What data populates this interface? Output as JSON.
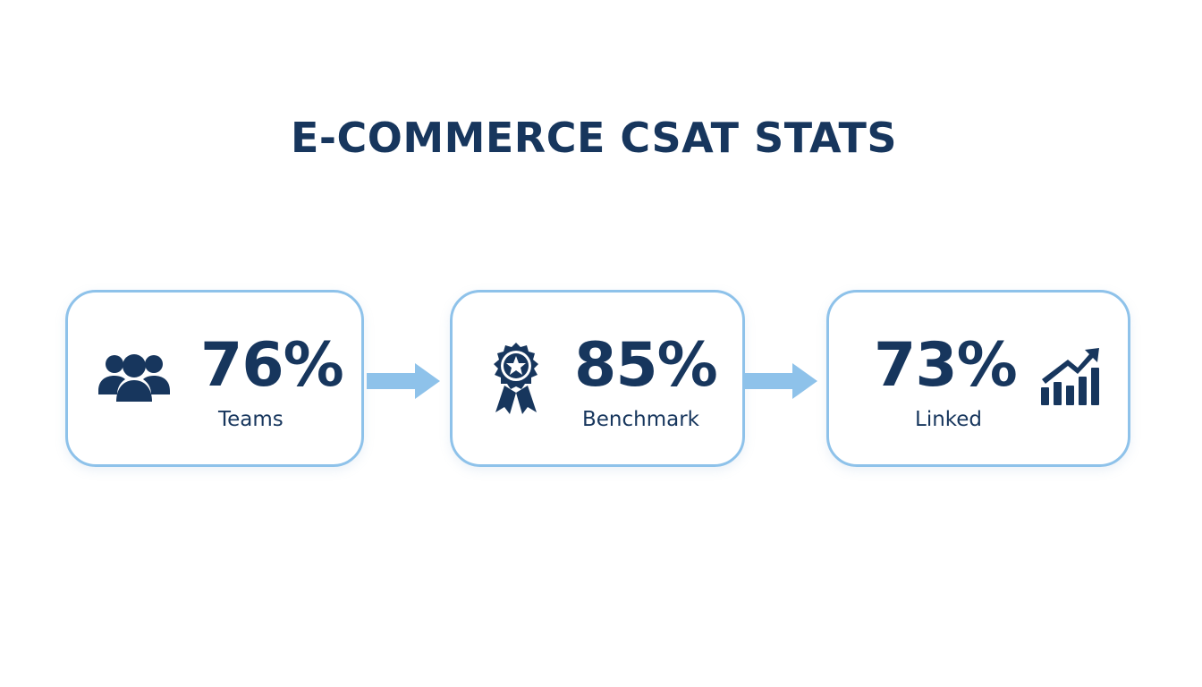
{
  "title": "E-COMMERCE CSAT STATS",
  "colors": {
    "primary": "#17365d",
    "accent": "#8ec2ea",
    "background": "#ffffff"
  },
  "stats": [
    {
      "value": "76%",
      "label": "Teams",
      "icon": "team-icon"
    },
    {
      "value": "85%",
      "label": "Benchmark",
      "icon": "award-badge-icon"
    },
    {
      "value": "73%",
      "label": "Linked",
      "icon": "growth-chart-icon"
    }
  ]
}
